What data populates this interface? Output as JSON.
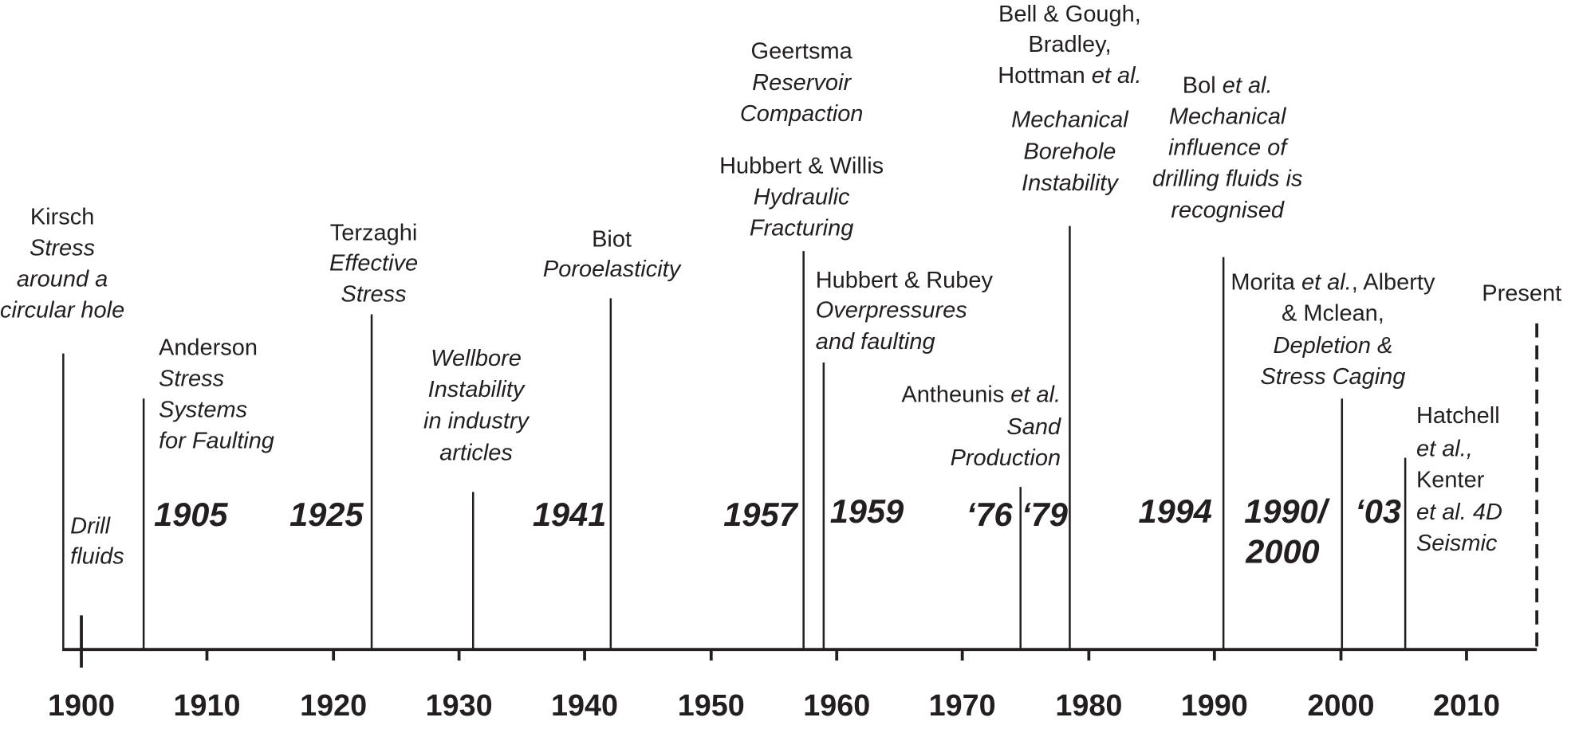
{
  "axis_labels": [
    "1900",
    "1910",
    "1920",
    "1930",
    "1940",
    "1950",
    "1960",
    "1970",
    "1980",
    "1990",
    "2000",
    "2010"
  ],
  "events": [
    {
      "lines": [
        [
          "Kirsch"
        ],
        [
          {
            "italic": "Stress"
          }
        ],
        [
          {
            "italic": "around a"
          }
        ],
        [
          {
            "italic": "circular hole"
          }
        ]
      ]
    },
    {
      "lines": [
        [
          {
            "italic": "Drill"
          }
        ],
        [
          {
            "italic": "fluids"
          }
        ]
      ]
    },
    {
      "lines": [
        [
          "Anderson"
        ],
        [
          {
            "italic": "Stress"
          }
        ],
        [
          {
            "italic": "Systems"
          }
        ],
        [
          {
            "italic": "for Faulting"
          }
        ]
      ]
    },
    {
      "lines": [
        [
          "Terzaghi"
        ],
        [
          {
            "italic": "Effective"
          }
        ],
        [
          {
            "italic": "Stress"
          }
        ]
      ]
    },
    {
      "lines": [
        [
          {
            "italic": "Wellbore"
          }
        ],
        [
          {
            "italic": "Instability"
          }
        ],
        [
          {
            "italic": "in industry"
          }
        ],
        [
          {
            "italic": "articles"
          }
        ]
      ]
    },
    {
      "lines": [
        [
          "Biot"
        ],
        [
          {
            "italic": "Poroelasticity"
          }
        ]
      ]
    },
    {
      "lines": [
        [
          "Geertsma"
        ],
        [
          {
            "italic": "Reservoir"
          }
        ],
        [
          {
            "italic": "Compaction"
          }
        ],
        [
          "Hubbert & Willis"
        ],
        [
          {
            "italic": "Hydraulic"
          }
        ],
        [
          {
            "italic": "Fracturing"
          }
        ]
      ]
    },
    {
      "lines": [
        [
          "Hubbert & Rubey"
        ],
        [
          {
            "italic": "Overpressures"
          }
        ],
        [
          {
            "italic": "and faulting"
          }
        ]
      ]
    },
    {
      "lines": [
        [
          "Antheunis ",
          {
            "italic": "et al."
          }
        ],
        [
          {
            "italic": "Sand"
          }
        ],
        [
          {
            "italic": "Production"
          }
        ]
      ]
    },
    {
      "lines": [
        [
          "Bell & Gough,"
        ],
        [
          "Bradley,"
        ],
        [
          "Hottman ",
          {
            "italic": "et al."
          }
        ],
        [
          {
            "italic": "Mechanical"
          }
        ],
        [
          {
            "italic": "Borehole"
          }
        ],
        [
          {
            "italic": "Instability"
          }
        ]
      ]
    },
    {
      "lines": [
        [
          "Bol ",
          {
            "italic": "et al."
          }
        ],
        [
          {
            "italic": "Mechanical"
          }
        ],
        [
          {
            "italic": "influence of"
          }
        ],
        [
          {
            "italic": "drilling fluids is"
          }
        ],
        [
          {
            "italic": "recognised"
          }
        ]
      ]
    },
    {
      "lines": [
        [
          "Morita ",
          {
            "italic": "et al."
          },
          ", Alberty"
        ],
        [
          "& Mclean,"
        ],
        [
          {
            "italic": "Depletion &"
          }
        ],
        [
          {
            "italic": "Stress Caging"
          }
        ]
      ]
    },
    {
      "lines": [
        [
          "Hatchell"
        ],
        [
          {
            "italic": "et al.,"
          }
        ],
        [
          "Kenter"
        ],
        [
          {
            "italic": "et al. 4D"
          }
        ],
        [
          {
            "italic": "Seismic"
          }
        ]
      ]
    },
    {
      "lines": [
        [
          "Present"
        ]
      ]
    }
  ],
  "year_labels": [
    "1905",
    "1925",
    "1941",
    "1957",
    "1959",
    "‘76",
    "‘79",
    "1994",
    "1990/",
    "2000",
    "‘03"
  ]
}
